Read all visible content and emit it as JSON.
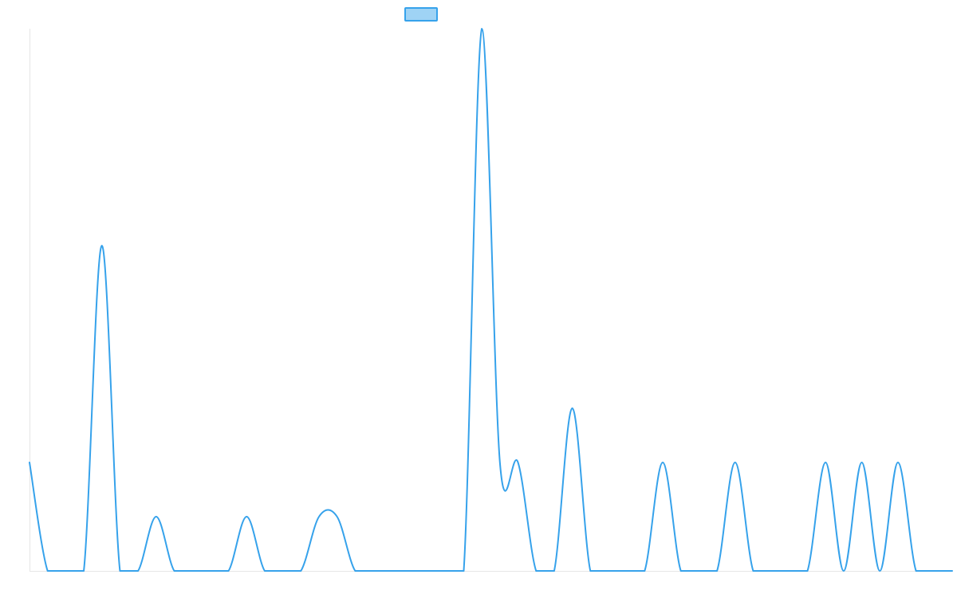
{
  "chart_data": {
    "type": "line",
    "title": "",
    "xlabel": "",
    "ylabel": "",
    "legend": "top-center",
    "grid": false,
    "ylim": [
      0,
      10
    ],
    "xlim": [
      0,
      51
    ],
    "colors": {
      "line": "#36a2eb",
      "legend_fill": "#9fd3f5",
      "axis": "#e6e6e6"
    },
    "series": [
      {
        "name": "",
        "x": [
          0,
          1,
          2,
          3,
          4,
          5,
          6,
          7,
          8,
          9,
          10,
          11,
          12,
          13,
          14,
          15,
          16,
          17,
          18,
          19,
          20,
          21,
          22,
          23,
          24,
          25,
          26,
          27,
          28,
          29,
          30,
          31,
          32,
          33,
          34,
          35,
          36,
          37,
          38,
          39,
          40,
          41,
          42,
          43,
          44,
          45,
          46,
          47,
          48,
          49,
          50,
          51
        ],
        "values": [
          2,
          0,
          0,
          0,
          6,
          0,
          0,
          1,
          0,
          0,
          0,
          0,
          1,
          0,
          0,
          0,
          1,
          1,
          0,
          0,
          0,
          0,
          0,
          0,
          0,
          10,
          2,
          2,
          0,
          0,
          3,
          0,
          0,
          0,
          0,
          2,
          0,
          0,
          0,
          2,
          0,
          0,
          0,
          0,
          2,
          0,
          2,
          0,
          2,
          0,
          0,
          0
        ]
      }
    ]
  }
}
